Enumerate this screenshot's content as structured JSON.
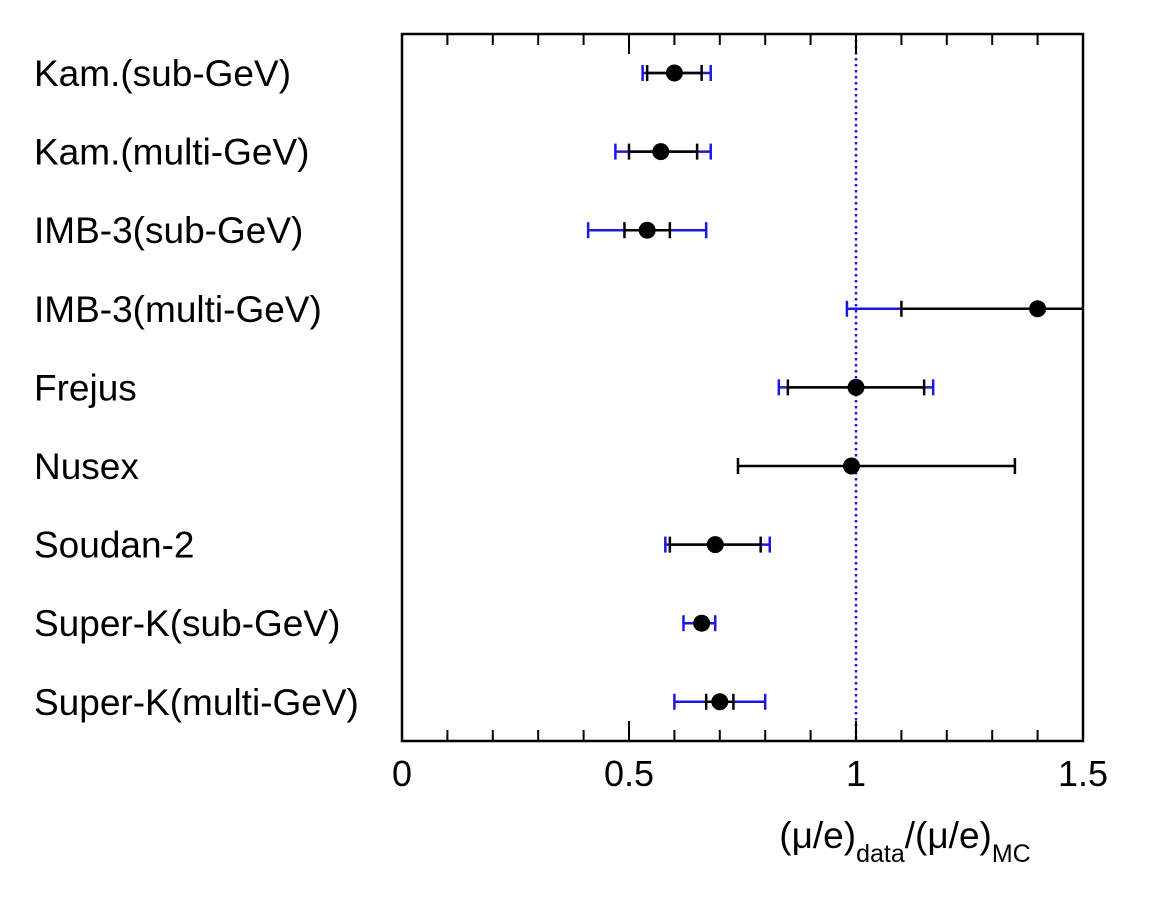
{
  "chart_data": {
    "type": "scatter",
    "orientation": "horizontal-error-bars",
    "title": "",
    "xlabel_main_1": "(μ/e)",
    "xlabel_sub_1": "data",
    "xlabel_main_2": "/(μ/e)",
    "xlabel_sub_2": "MC",
    "xlim": [
      0,
      1.5
    ],
    "xticks": [
      {
        "value": 0,
        "label": "0"
      },
      {
        "value": 0.5,
        "label": "0.5"
      },
      {
        "value": 1,
        "label": "1"
      },
      {
        "value": 1.5,
        "label": "1.5"
      }
    ],
    "minor_tick_step": 0.1,
    "reference_line": {
      "x": 1.0,
      "style": "dotted",
      "color": "#1a1adf"
    },
    "colors": {
      "point": "#000000",
      "stat_error": "#000000",
      "total_error": "#1a1adf"
    },
    "experiments": [
      {
        "label": "Kam.(sub-GeV)",
        "value": 0.6,
        "stat": [
          0.54,
          0.66
        ],
        "total": [
          0.53,
          0.68
        ]
      },
      {
        "label": "Kam.(multi-GeV)",
        "value": 0.57,
        "stat": [
          0.5,
          0.65
        ],
        "total": [
          0.47,
          0.68
        ]
      },
      {
        "label": "IMB-3(sub-GeV)",
        "value": 0.54,
        "stat": [
          0.49,
          0.59
        ],
        "total": [
          0.41,
          0.67
        ]
      },
      {
        "label": "IMB-3(multi-GeV)",
        "value": 1.4,
        "stat": [
          1.1,
          1.5
        ],
        "total": [
          0.98,
          1.5
        ]
      },
      {
        "label": "Frejus",
        "value": 1.0,
        "stat": [
          0.85,
          1.15
        ],
        "total": [
          0.83,
          1.17
        ]
      },
      {
        "label": "Nusex",
        "value": 0.99,
        "stat": [
          0.74,
          1.35
        ],
        "total": null
      },
      {
        "label": "Soudan-2",
        "value": 0.69,
        "stat": [
          0.59,
          0.79
        ],
        "total": [
          0.58,
          0.81
        ]
      },
      {
        "label": "Super-K(sub-GeV)",
        "value": 0.66,
        "stat": null,
        "total": [
          0.62,
          0.69
        ]
      },
      {
        "label": "Super-K(multi-GeV)",
        "value": 0.7,
        "stat": [
          0.67,
          0.73
        ],
        "total": [
          0.6,
          0.8
        ]
      }
    ]
  }
}
